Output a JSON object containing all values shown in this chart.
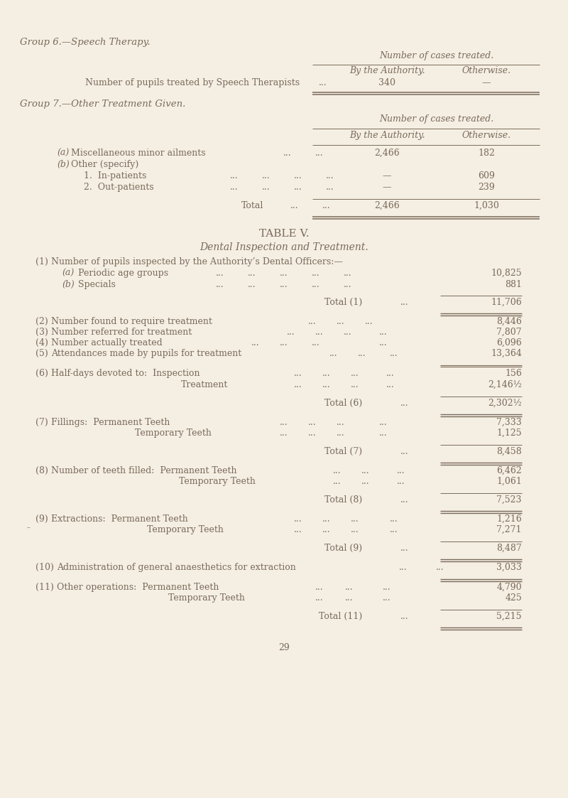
{
  "bg_color": "#f5efe3",
  "text_color": "#7a6a5a",
  "page_number": "29",
  "group6_heading": "Group 6.—Speech Therapy.",
  "group6_col_header": "Number of cases treated.",
  "group6_subheaders": [
    "By the Authority.",
    "Otherwise."
  ],
  "group7_heading": "Group 7.—Other Treatment Given.",
  "group7_col_header": "Number of cases treated.",
  "group7_subheaders": [
    "By the Authority.",
    "Otherwise."
  ],
  "table_v_title": "TABLE V.",
  "table_v_subtitle": "Dental Inspection and Treatment."
}
